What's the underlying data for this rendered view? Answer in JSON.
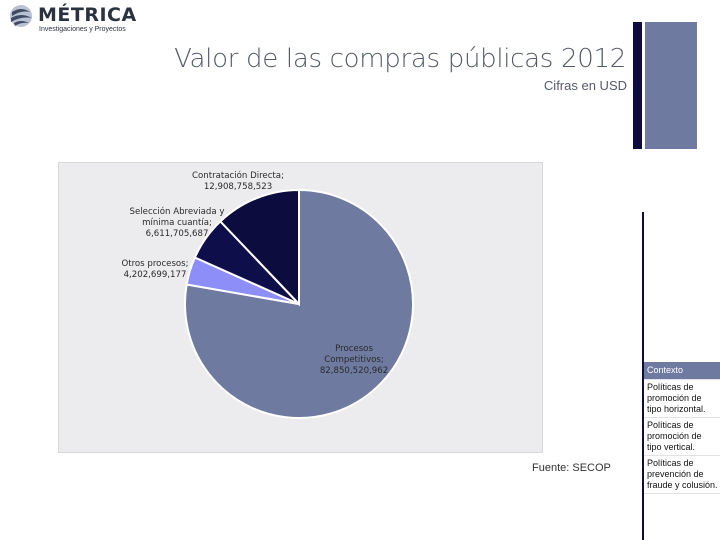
{
  "logo": {
    "name": "MÉTRICA",
    "tagline": "Investigaciones y Proyectos"
  },
  "header": {
    "title": "Valor de las compras públicas 2012",
    "subtitle": "Cifras en USD"
  },
  "source": "Fuente: SECOP",
  "nav": {
    "items": [
      {
        "label": "Contexto",
        "active": true
      },
      {
        "label": "Políticas de promoción de tipo horizontal.",
        "active": false
      },
      {
        "label": "Políticas de promoción de tipo vertical.",
        "active": false
      },
      {
        "label": "Políticas de prevención de fraude y colusión.",
        "active": false
      }
    ]
  },
  "colors": {
    "accent_dark": "#0c0c3e",
    "accent_blue": "#6f7aa1",
    "slice_light": "#8d8ef7"
  },
  "chart_data": {
    "type": "pie",
    "slices": [
      {
        "label_lines": [
          "Procesos",
          "Competitivos;",
          "82,850,520,962"
        ],
        "name": "Procesos Competitivos",
        "value": 82850520962,
        "color": "#6f7aa1"
      },
      {
        "label_lines": [
          "Otros procesos;",
          "4,202,699,177"
        ],
        "name": "Otros procesos",
        "value": 4202699177,
        "color": "#8d8ef7"
      },
      {
        "label_lines": [
          "Selección Abreviada y",
          "mínima cuantía;",
          "6,611,705,687"
        ],
        "name": "Selección Abreviada y mínima cuantía",
        "value": 6611705687,
        "color": "#0d0e4a"
      },
      {
        "label_lines": [
          "Contratación Directa;",
          "12,908,758,523"
        ],
        "name": "Contratación Directa",
        "value": 12908758523,
        "color": "#0c0c3e"
      }
    ]
  }
}
